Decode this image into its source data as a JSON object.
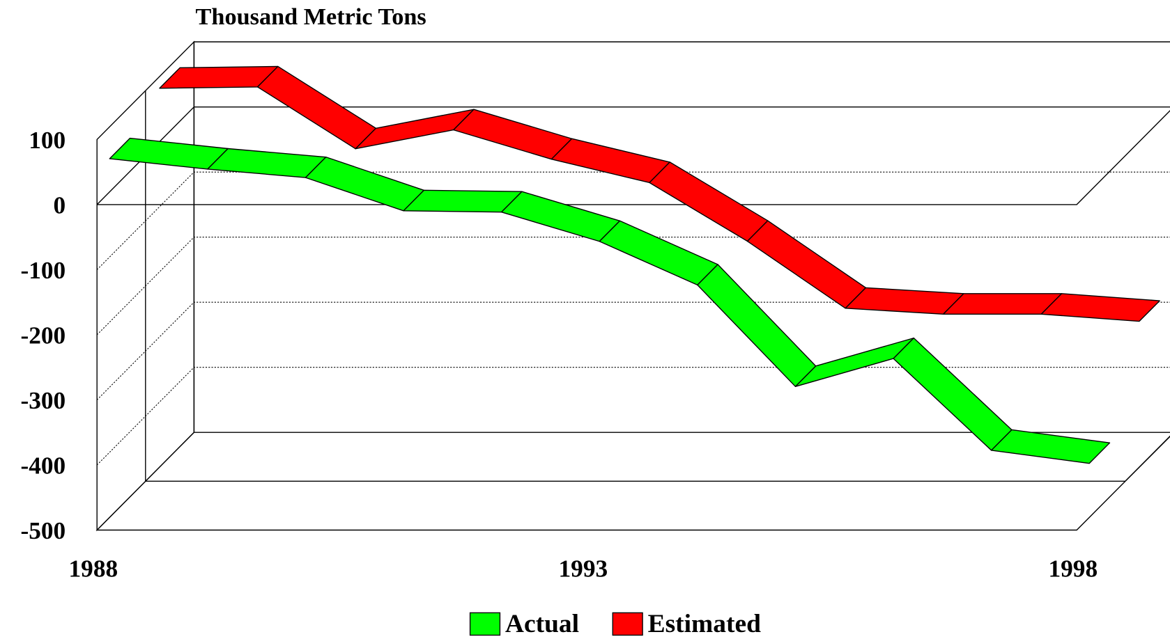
{
  "chart_data": {
    "type": "line3d",
    "title": "Thousand Metric Tons",
    "x": [
      1988,
      1989,
      1990,
      1991,
      1992,
      1993,
      1994,
      1995,
      1996,
      1997,
      1998
    ],
    "xlim": [
      1988,
      1998
    ],
    "xticks": [
      1988,
      1993,
      1998
    ],
    "ylim": [
      -500,
      100
    ],
    "yticks": [
      -500,
      -400,
      -300,
      -200,
      -100,
      0,
      100
    ],
    "grid": true,
    "legend": "bottom",
    "series": [
      {
        "name": "Actual",
        "color": "#00ff00",
        "values": [
          51,
          35,
          22,
          -29,
          -31,
          -76,
          -143,
          -299,
          -256,
          -397,
          -417
        ]
      },
      {
        "name": "Estimated",
        "color": "#ff0000",
        "values": [
          82,
          84,
          -11,
          18,
          -27,
          -63,
          -153,
          -256,
          -265,
          -265,
          -276
        ]
      }
    ]
  }
}
